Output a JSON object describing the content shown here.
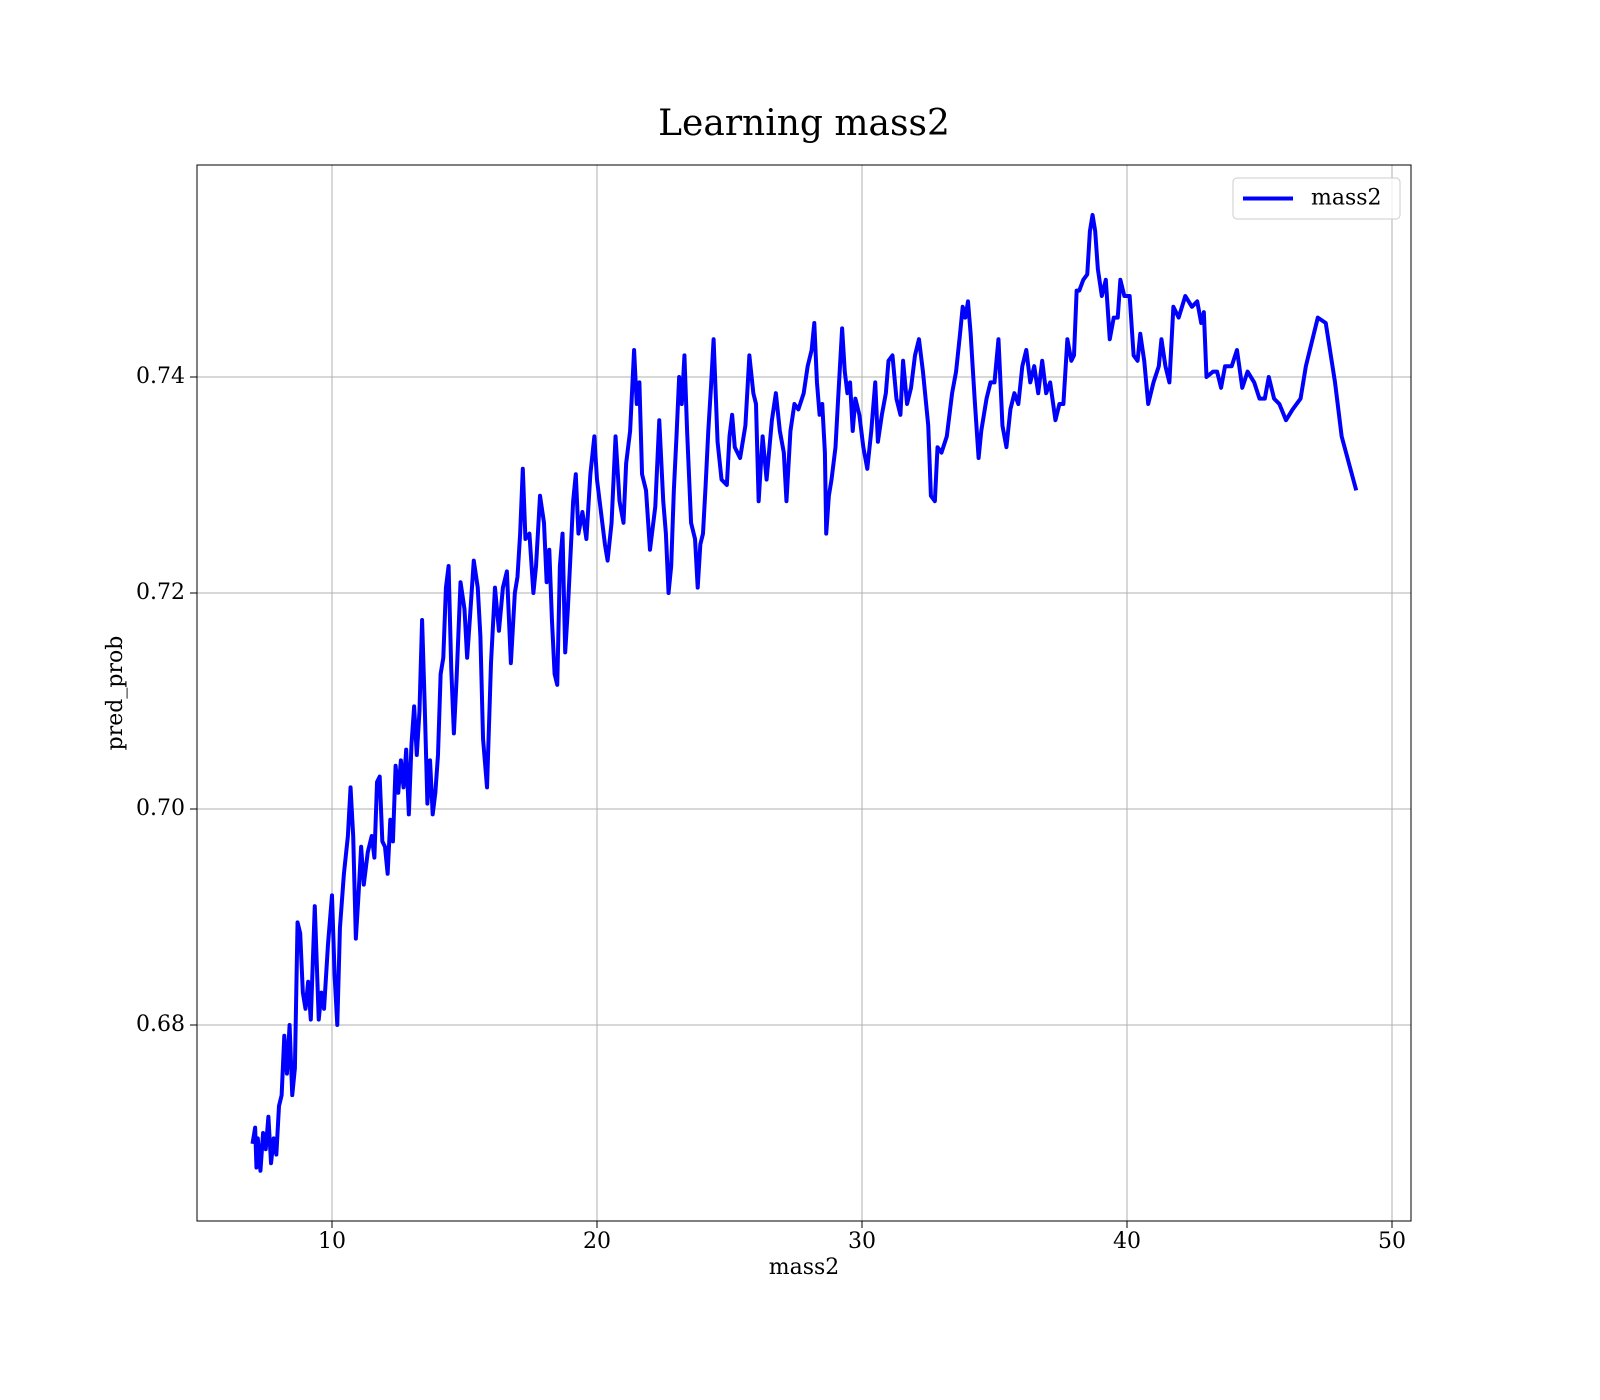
{
  "chart_data": {
    "type": "line",
    "title": "Learning mass2",
    "xlabel": "mass2",
    "ylabel": "pred_prob",
    "x": [
      7.0,
      7.1,
      7.15,
      7.2,
      7.3,
      7.4,
      7.5,
      7.6,
      7.7,
      7.8,
      7.9,
      8.0,
      8.1,
      8.2,
      8.3,
      8.4,
      8.5,
      8.6,
      8.7,
      8.8,
      8.9,
      9.0,
      9.1,
      9.2,
      9.35,
      9.5,
      9.6,
      9.7,
      9.85,
      10.0,
      10.1,
      10.2,
      10.3,
      10.45,
      10.6,
      10.7,
      10.8,
      10.9,
      11.0,
      11.1,
      11.2,
      11.35,
      11.5,
      11.6,
      11.7,
      11.8,
      11.9,
      12.0,
      12.1,
      12.2,
      12.3,
      12.4,
      12.5,
      12.6,
      12.7,
      12.8,
      12.9,
      13.0,
      13.1,
      13.2,
      13.3,
      13.4,
      13.5,
      13.6,
      13.7,
      13.8,
      13.9,
      14.0,
      14.1,
      14.2,
      14.3,
      14.4,
      14.5,
      14.6,
      14.7,
      14.85,
      15.0,
      15.1,
      15.2,
      15.35,
      15.5,
      15.6,
      15.7,
      15.85,
      16.0,
      16.15,
      16.3,
      16.45,
      16.6,
      16.75,
      16.9,
      17.0,
      17.1,
      17.2,
      17.3,
      17.45,
      17.6,
      17.7,
      17.85,
      18.0,
      18.1,
      18.2,
      18.3,
      18.4,
      18.5,
      18.6,
      18.7,
      18.8,
      18.9,
      19.0,
      19.1,
      19.2,
      19.3,
      19.45,
      19.6,
      19.75,
      19.9,
      20.0,
      20.15,
      20.3,
      20.4,
      20.55,
      20.7,
      20.85,
      21.0,
      21.1,
      21.25,
      21.4,
      21.5,
      21.6,
      21.7,
      21.85,
      22.0,
      22.2,
      22.35,
      22.5,
      22.6,
      22.7,
      22.8,
      22.9,
      23.0,
      23.1,
      23.2,
      23.3,
      23.4,
      23.55,
      23.7,
      23.8,
      23.9,
      24.0,
      24.1,
      24.2,
      24.3,
      24.4,
      24.55,
      24.7,
      24.9,
      25.0,
      25.1,
      25.2,
      25.4,
      25.6,
      25.75,
      25.9,
      26.0,
      26.1,
      26.25,
      26.4,
      26.6,
      26.75,
      26.9,
      27.05,
      27.15,
      27.3,
      27.45,
      27.6,
      27.8,
      27.95,
      28.1,
      28.2,
      28.3,
      28.4,
      28.5,
      28.6,
      28.65,
      28.75,
      28.85,
      29.0,
      29.1,
      29.25,
      29.35,
      29.45,
      29.55,
      29.65,
      29.75,
      29.9,
      30.05,
      30.2,
      30.35,
      30.5,
      30.6,
      30.75,
      30.9,
      31.0,
      31.15,
      31.3,
      31.45,
      31.55,
      31.7,
      31.85,
      32.0,
      32.15,
      32.3,
      32.5,
      32.6,
      32.75,
      32.85,
      33.0,
      33.2,
      33.4,
      33.55,
      33.7,
      33.8,
      33.9,
      34.0,
      34.1,
      34.25,
      34.4,
      34.5,
      34.7,
      34.85,
      35.0,
      35.15,
      35.3,
      35.45,
      35.6,
      35.75,
      35.9,
      36.05,
      36.2,
      36.35,
      36.5,
      36.65,
      36.8,
      36.95,
      37.1,
      37.3,
      37.45,
      37.6,
      37.75,
      37.9,
      38.0,
      38.1,
      38.2,
      38.35,
      38.5,
      38.6,
      38.7,
      38.8,
      38.9,
      39.05,
      39.2,
      39.35,
      39.5,
      39.65,
      39.75,
      39.9,
      40.1,
      40.25,
      40.4,
      40.5,
      40.65,
      40.8,
      41.0,
      41.2,
      41.3,
      41.45,
      41.6,
      41.75,
      41.95,
      42.2,
      42.45,
      42.65,
      42.8,
      42.9,
      43.0,
      43.25,
      43.4,
      43.55,
      43.7,
      43.95,
      44.15,
      44.35,
      44.55,
      44.8,
      45.0,
      45.2,
      45.35,
      45.55,
      45.75,
      46.0,
      46.25,
      46.55,
      46.75,
      47.2,
      47.5,
      47.85,
      48.1,
      48.65
    ],
    "series": [
      {
        "name": "mass2",
        "color": "#0000ff",
        "values": [
          0.669,
          0.6705,
          0.6668,
          0.6695,
          0.6665,
          0.67,
          0.6685,
          0.6715,
          0.6672,
          0.6695,
          0.668,
          0.6725,
          0.6735,
          0.679,
          0.6755,
          0.68,
          0.6735,
          0.676,
          0.6895,
          0.6885,
          0.683,
          0.6815,
          0.684,
          0.6805,
          0.691,
          0.6805,
          0.683,
          0.6815,
          0.6875,
          0.692,
          0.6845,
          0.68,
          0.689,
          0.694,
          0.6975,
          0.702,
          0.6975,
          0.688,
          0.692,
          0.6965,
          0.693,
          0.696,
          0.6975,
          0.6955,
          0.7025,
          0.703,
          0.697,
          0.6965,
          0.694,
          0.699,
          0.697,
          0.704,
          0.7015,
          0.7045,
          0.702,
          0.7055,
          0.6995,
          0.706,
          0.7095,
          0.705,
          0.709,
          0.7175,
          0.7095,
          0.7005,
          0.7045,
          0.6995,
          0.7015,
          0.705,
          0.7125,
          0.714,
          0.7205,
          0.7225,
          0.713,
          0.707,
          0.712,
          0.721,
          0.7185,
          0.714,
          0.7175,
          0.723,
          0.7205,
          0.716,
          0.7065,
          0.702,
          0.7135,
          0.7205,
          0.7165,
          0.7205,
          0.722,
          0.7135,
          0.72,
          0.7215,
          0.7255,
          0.7315,
          0.725,
          0.7255,
          0.72,
          0.7225,
          0.729,
          0.7265,
          0.721,
          0.724,
          0.7175,
          0.7125,
          0.7115,
          0.7225,
          0.7255,
          0.7145,
          0.7185,
          0.7235,
          0.7285,
          0.731,
          0.7255,
          0.7275,
          0.725,
          0.731,
          0.7345,
          0.7305,
          0.7275,
          0.7245,
          0.723,
          0.7265,
          0.7345,
          0.7285,
          0.7265,
          0.732,
          0.735,
          0.7425,
          0.7375,
          0.7395,
          0.731,
          0.7295,
          0.724,
          0.728,
          0.736,
          0.7285,
          0.7255,
          0.72,
          0.7225,
          0.7295,
          0.7345,
          0.74,
          0.7375,
          0.742,
          0.735,
          0.7265,
          0.725,
          0.7205,
          0.7245,
          0.7255,
          0.73,
          0.735,
          0.739,
          0.7435,
          0.734,
          0.7305,
          0.73,
          0.7345,
          0.7365,
          0.7335,
          0.7325,
          0.7355,
          0.742,
          0.7385,
          0.7375,
          0.7285,
          0.7345,
          0.7305,
          0.736,
          0.7385,
          0.735,
          0.733,
          0.7285,
          0.735,
          0.7375,
          0.737,
          0.7385,
          0.741,
          0.7425,
          0.745,
          0.7395,
          0.7365,
          0.7375,
          0.733,
          0.7255,
          0.729,
          0.7305,
          0.7335,
          0.738,
          0.7445,
          0.7405,
          0.7385,
          0.7395,
          0.735,
          0.738,
          0.7365,
          0.7335,
          0.7315,
          0.735,
          0.7395,
          0.734,
          0.7365,
          0.7385,
          0.7415,
          0.742,
          0.738,
          0.7365,
          0.7415,
          0.7375,
          0.739,
          0.742,
          0.7435,
          0.7405,
          0.7355,
          0.729,
          0.7285,
          0.7335,
          0.733,
          0.7345,
          0.7385,
          0.7405,
          0.744,
          0.7465,
          0.7455,
          0.747,
          0.744,
          0.738,
          0.7325,
          0.735,
          0.738,
          0.7395,
          0.7395,
          0.7435,
          0.7355,
          0.7335,
          0.737,
          0.7385,
          0.7375,
          0.741,
          0.7425,
          0.7395,
          0.741,
          0.7385,
          0.7415,
          0.7385,
          0.7395,
          0.736,
          0.7375,
          0.7375,
          0.7435,
          0.7415,
          0.742,
          0.748,
          0.748,
          0.749,
          0.7495,
          0.7535,
          0.755,
          0.7535,
          0.75,
          0.7475,
          0.749,
          0.7435,
          0.7455,
          0.7455,
          0.749,
          0.7475,
          0.7475,
          0.742,
          0.7415,
          0.744,
          0.7415,
          0.7375,
          0.7395,
          0.741,
          0.7435,
          0.741,
          0.7395,
          0.7465,
          0.7455,
          0.7475,
          0.7465,
          0.747,
          0.745,
          0.746,
          0.74,
          0.7405,
          0.7405,
          0.739,
          0.741,
          0.741,
          0.7425,
          0.739,
          0.7405,
          0.7395,
          0.738,
          0.738,
          0.74,
          0.738,
          0.7375,
          0.736,
          0.737,
          0.738,
          0.741,
          0.7455,
          0.745,
          0.7395,
          0.7345,
          0.7295
        ]
      }
    ],
    "xlim": [
      4.906,
      50.717
    ],
    "ylim": [
      0.66185,
      0.75963
    ],
    "xticks": [
      10,
      20,
      30,
      40,
      50
    ],
    "yticks": [
      0.68,
      {
        "value": 0.7,
        "label": "0.70"
      },
      0.72,
      0.74
    ],
    "grid": true,
    "legend": "upper right"
  }
}
